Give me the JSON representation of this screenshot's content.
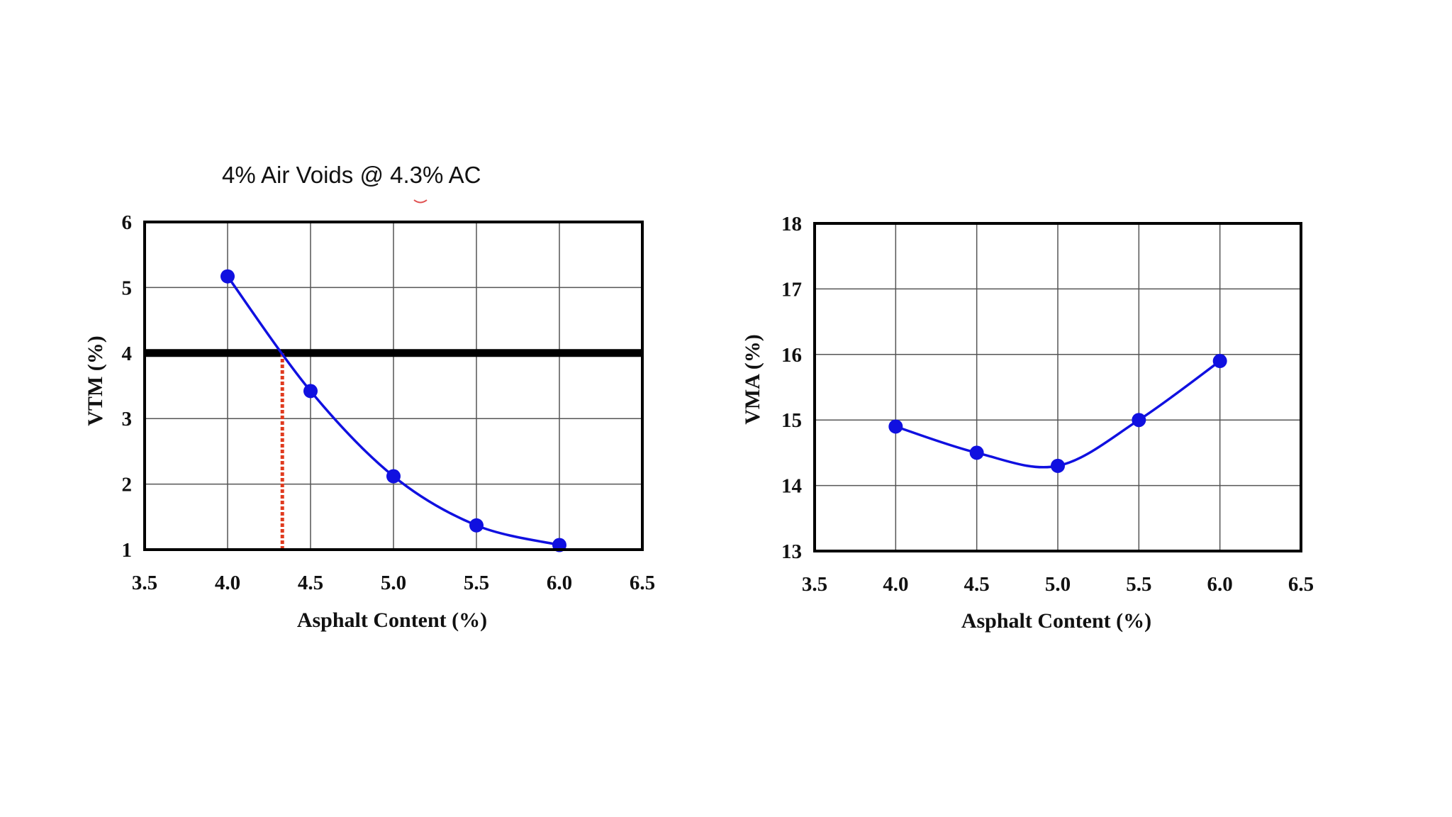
{
  "slide": {
    "annotation": "4% Air Voids @ 4.3% AC"
  },
  "chart_data": [
    {
      "type": "line",
      "xlabel": "Asphalt Content (%)",
      "ylabel": "VTM (%)",
      "xlim": [
        3.5,
        6.5
      ],
      "ylim": [
        1,
        6
      ],
      "x_ticks": [
        "3.5",
        "4.0",
        "4.5",
        "5.0",
        "5.5",
        "6.0",
        "6.5"
      ],
      "y_ticks": [
        "1",
        "2",
        "3",
        "4",
        "5",
        "6"
      ],
      "x_tick_values": [
        3.5,
        4.0,
        4.5,
        5.0,
        5.5,
        6.0,
        6.5
      ],
      "y_tick_values": [
        1,
        2,
        3,
        4,
        5,
        6
      ],
      "grid": true,
      "series": [
        {
          "x": [
            4.0,
            4.5,
            5.0,
            5.5,
            6.0
          ],
          "y": [
            5.17,
            3.42,
            2.12,
            1.37,
            1.07
          ],
          "color": "#1010e0"
        }
      ],
      "reference_lines": [
        {
          "orientation": "horizontal",
          "y": 4.0,
          "color": "#000000",
          "style": "solid"
        },
        {
          "orientation": "vertical",
          "x": 4.33,
          "y_from": 1,
          "y_to": 4.0,
          "color": "#e03a1e",
          "style": "dotted"
        }
      ]
    },
    {
      "type": "line",
      "xlabel": "Asphalt Content (%)",
      "ylabel": "VMA (%)",
      "xlim": [
        3.5,
        6.5
      ],
      "ylim": [
        13,
        18
      ],
      "x_ticks": [
        "3.5",
        "4.0",
        "4.5",
        "5.0",
        "5.5",
        "6.0",
        "6.5"
      ],
      "y_ticks": [
        "13",
        "14",
        "15",
        "16",
        "17",
        "18"
      ],
      "x_tick_values": [
        3.5,
        4.0,
        4.5,
        5.0,
        5.5,
        6.0,
        6.5
      ],
      "y_tick_values": [
        13,
        14,
        15,
        16,
        17,
        18
      ],
      "grid": true,
      "series": [
        {
          "x": [
            4.0,
            4.5,
            5.0,
            5.5,
            6.0
          ],
          "y": [
            14.9,
            14.5,
            14.3,
            15.0,
            15.9
          ],
          "color": "#1010e0"
        }
      ]
    }
  ]
}
